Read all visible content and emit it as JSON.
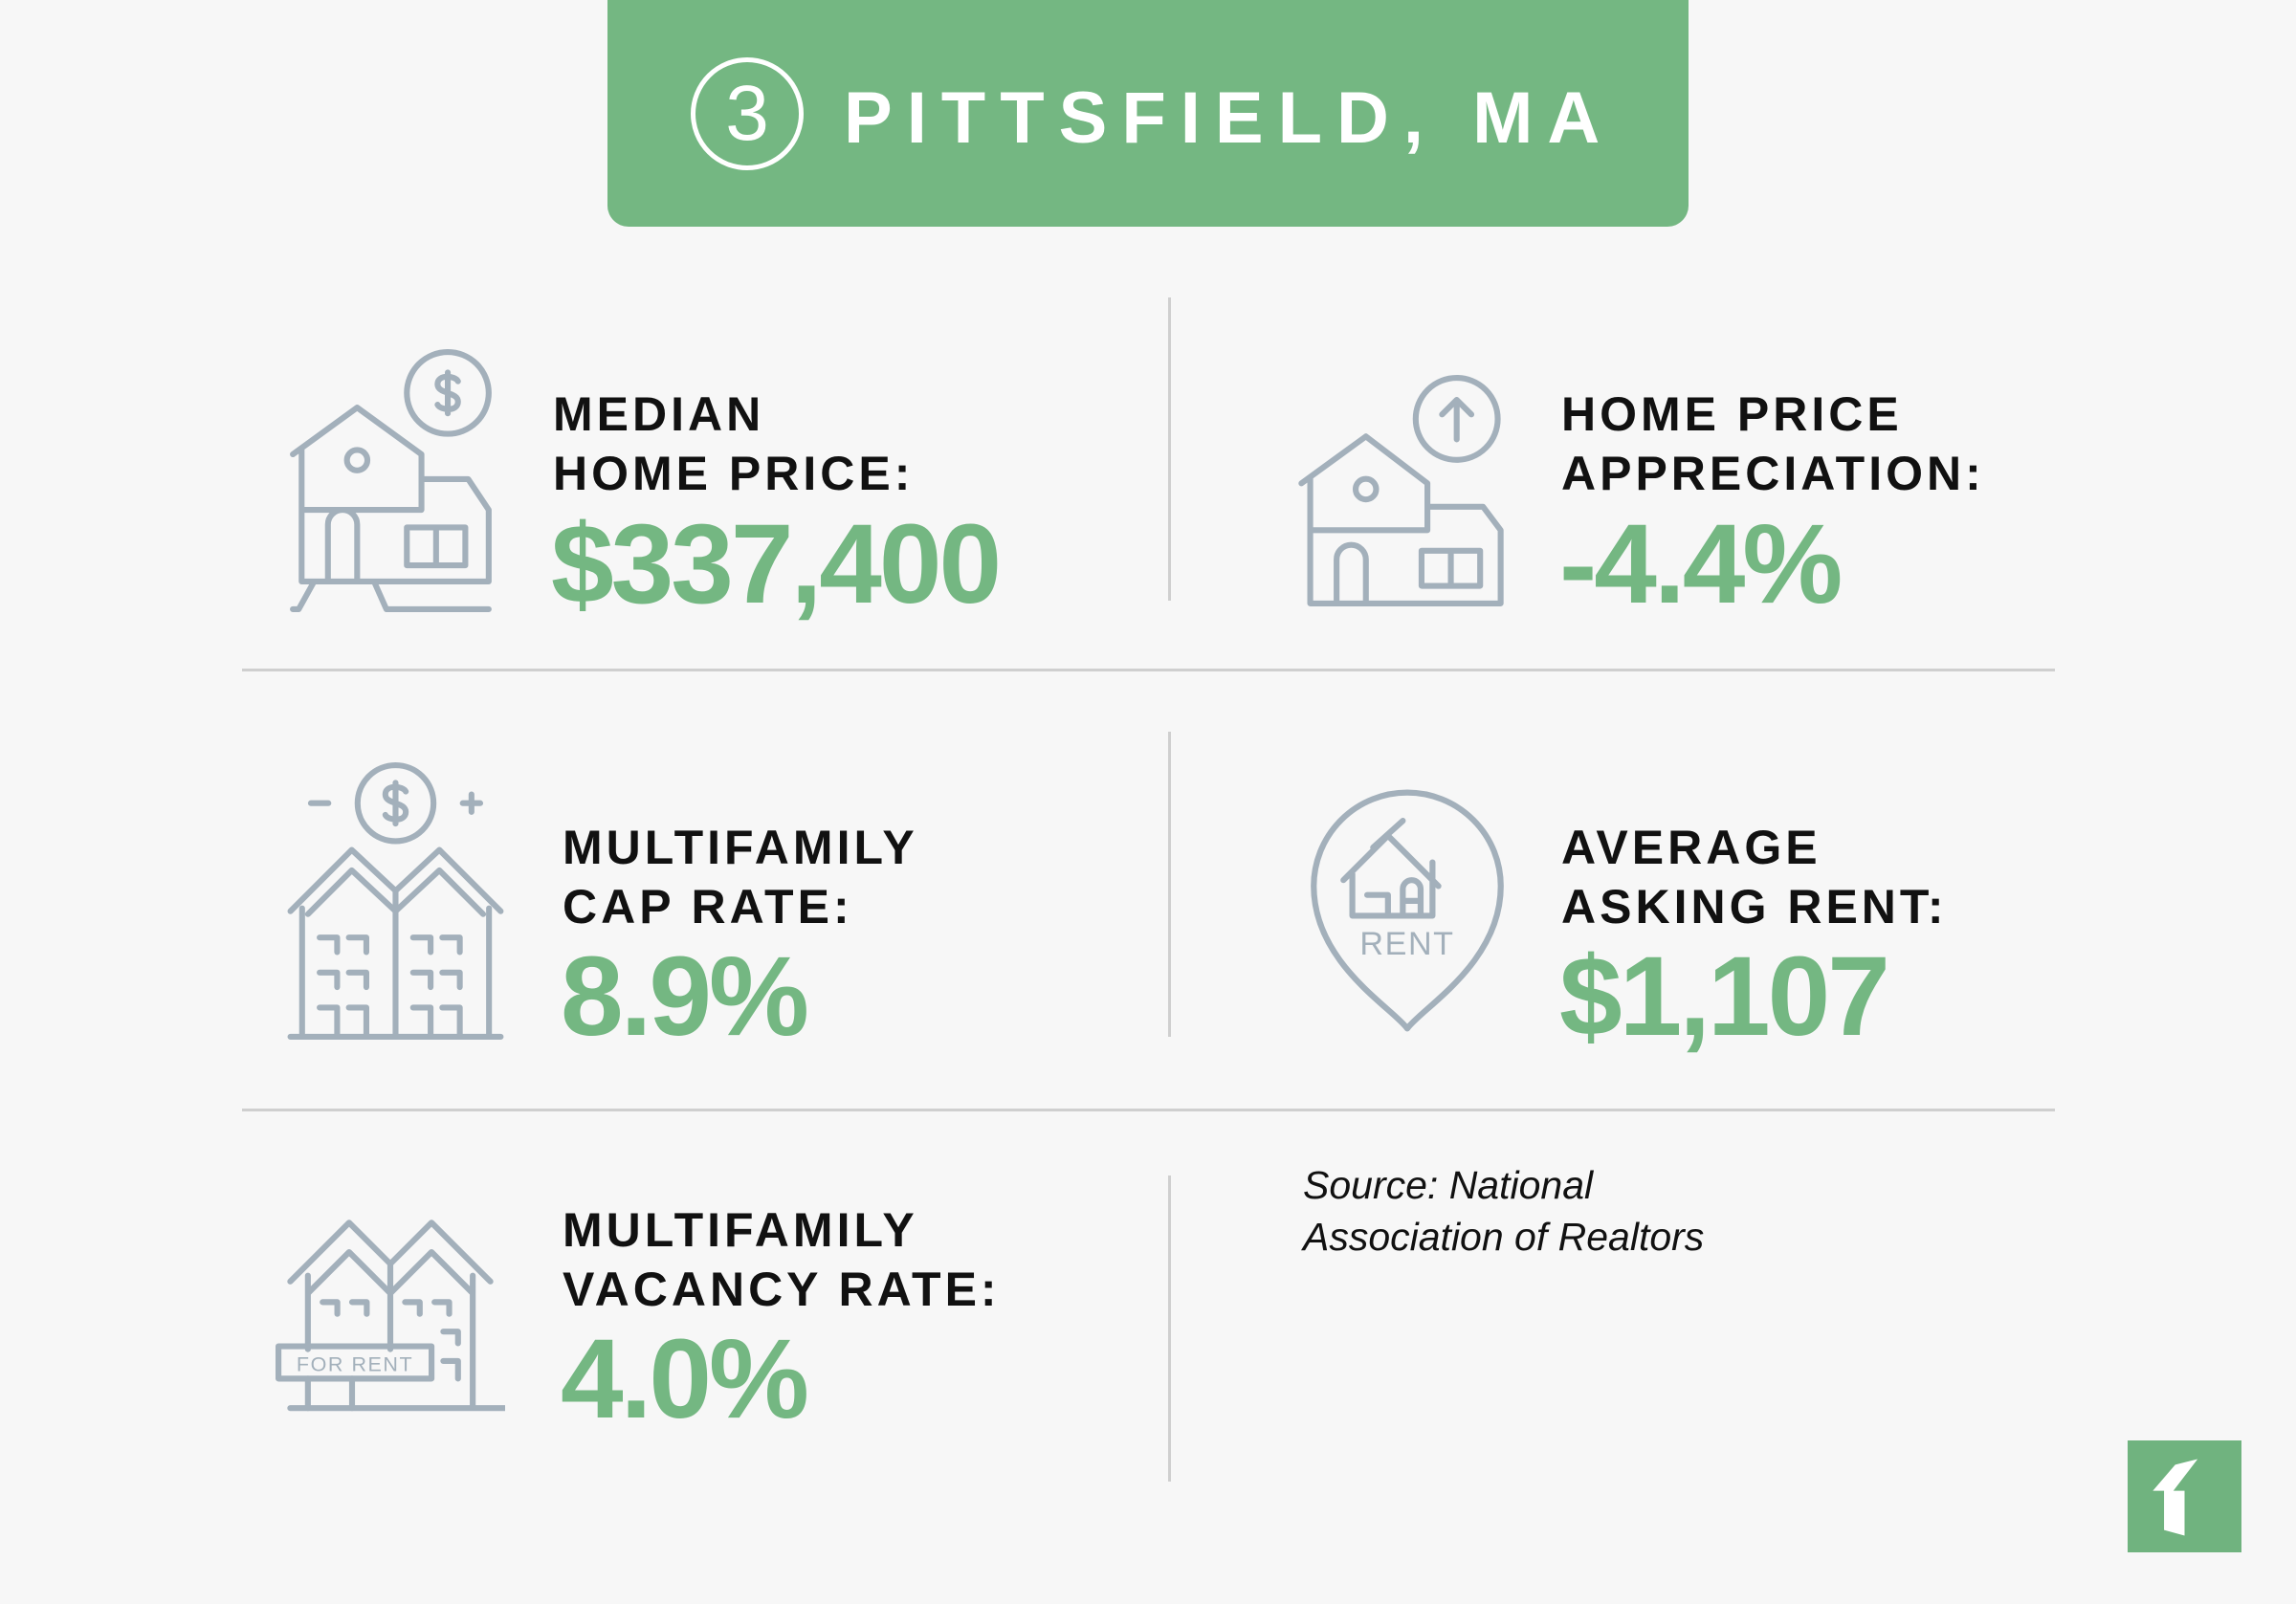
{
  "header": {
    "rank": "3",
    "city": "PITTSFIELD, MA"
  },
  "stats": [
    {
      "label_line1": "MEDIAN",
      "label_line2": "HOME PRICE:",
      "value": "$337,400",
      "icon": "house-dollar-icon"
    },
    {
      "label_line1": "HOME PRICE",
      "label_line2": "APPRECIATION:",
      "value": "-4.4%",
      "icon": "house-arrow-up-icon"
    },
    {
      "label_line1": "MULTIFAMILY",
      "label_line2": "CAP RATE:",
      "value": "8.9%",
      "icon": "multifamily-dollar-icon"
    },
    {
      "label_line1": "AVERAGE",
      "label_line2": "ASKING RENT:",
      "value": "$1,107",
      "icon": "rent-pin-icon",
      "icon_text": "RENT"
    },
    {
      "label_line1": "MULTIFAMILY",
      "label_line2": "VACANCY RATE:",
      "value": "4.0%",
      "icon": "for-rent-building-icon",
      "icon_text": "FOR RENT"
    }
  ],
  "source": {
    "line1": "Source: National",
    "line2": "Association of Realtors"
  },
  "colors": {
    "accent": "#74b782",
    "background": "#f7f7f7",
    "icon": "#a3b0bb",
    "text": "#111111"
  }
}
